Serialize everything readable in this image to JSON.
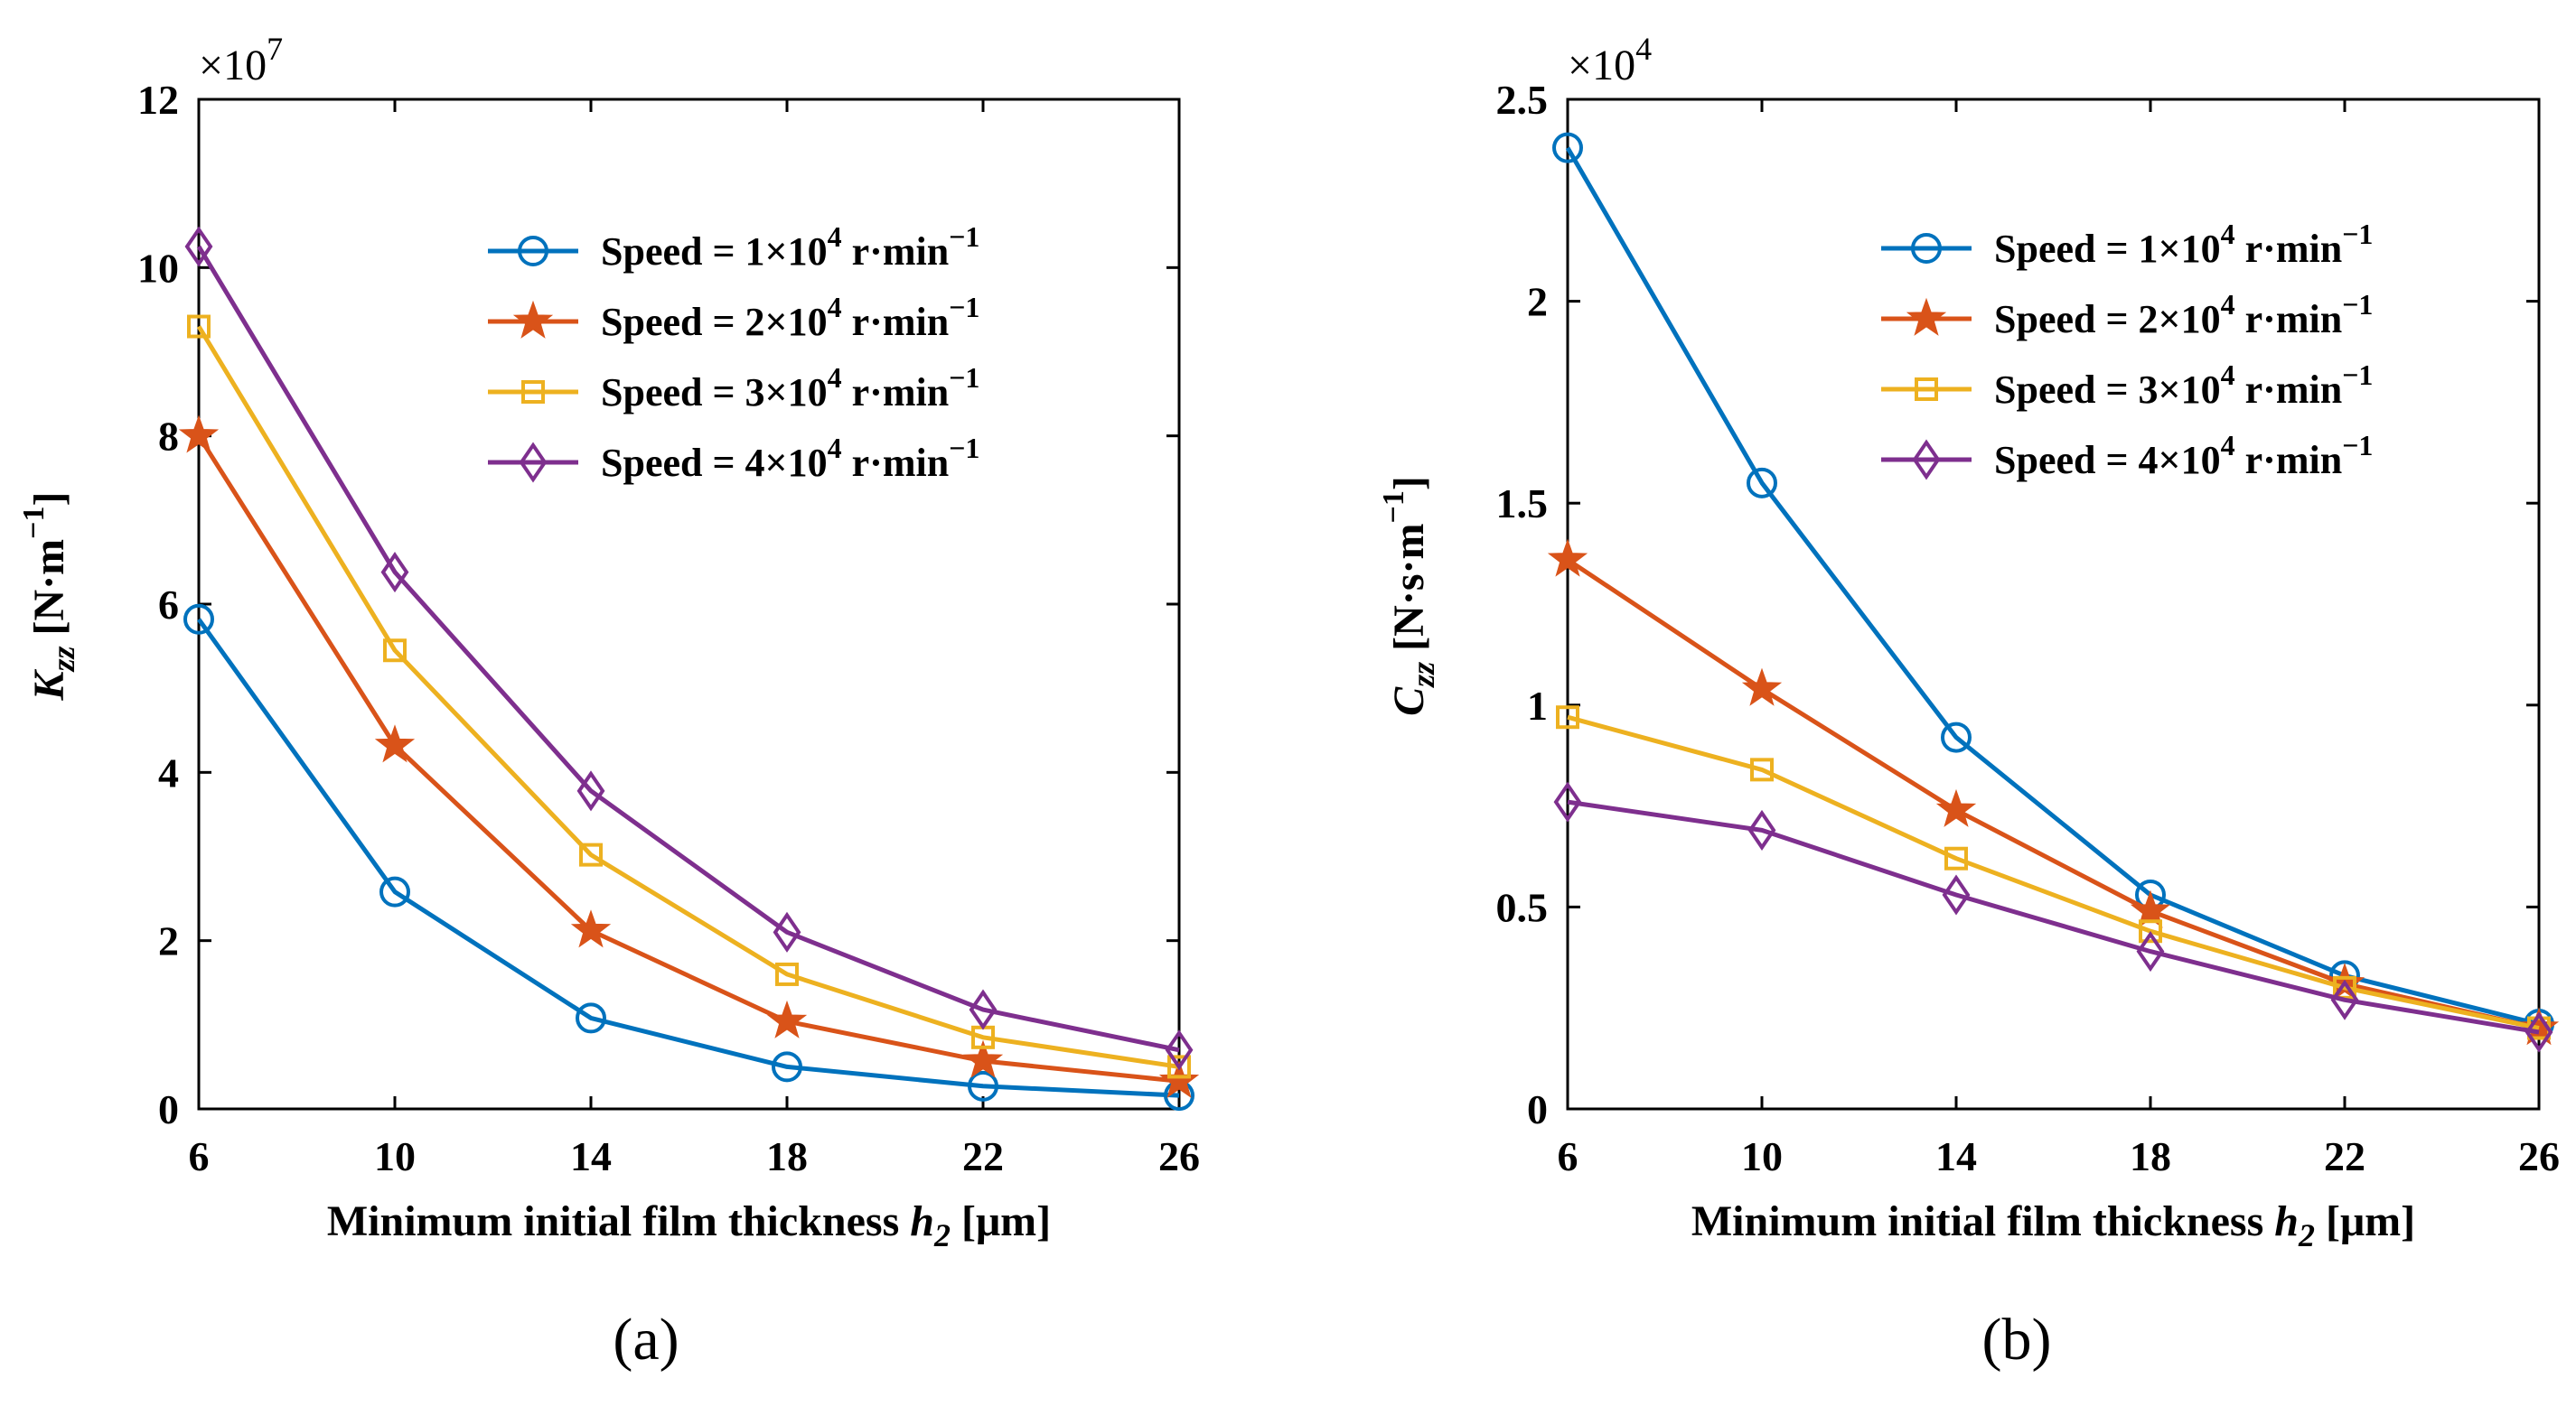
{
  "chart_data": [
    {
      "type": "line",
      "panel": "a",
      "caption": "(a)",
      "x": [
        6,
        10,
        14,
        18,
        22,
        26
      ],
      "xticks": [
        "6",
        "10",
        "14",
        "18",
        "22",
        "26"
      ],
      "xlim": [
        6,
        26
      ],
      "xlabel": "Minimum initial film thickness h2 [μm]",
      "xlabel_main": "Minimum initial film thickness ",
      "xlabel_var": "h",
      "xlabel_sub": "2",
      "xlabel_unit": " [μm]",
      "ylabel": "Kzz [N·m−1]",
      "ylabel_var": "K",
      "ylabel_sub": "zz",
      "ylabel_unit": " [N·m",
      "ylabel_sup": "−1",
      "ylabel_close": "]",
      "yunit_display": "",
      "ylim": [
        0,
        12
      ],
      "yticks": [
        0,
        2,
        4,
        6,
        8,
        10,
        12
      ],
      "ytick_labels": [
        "0",
        "2",
        "4",
        "6",
        "8",
        "10",
        "12"
      ],
      "y_multiplier": "×10",
      "y_multiplier_exp": "7",
      "legend_position": "top-right",
      "series": [
        {
          "name": "Speed = 1×10^4 r·min^-1",
          "label_pre": "Speed = 1×10",
          "label_exp": "4",
          "label_mid": " r·min",
          "label_exp2": "−1",
          "marker": "circle",
          "color": "#0072BD",
          "values": [
            5.82,
            2.58,
            1.08,
            0.5,
            0.27,
            0.16
          ]
        },
        {
          "name": "Speed = 2×10^4 r·min^-1",
          "label_pre": "Speed = 2×10",
          "label_exp": "4",
          "label_mid": " r·min",
          "label_exp2": "−1",
          "marker": "star",
          "color": "#D95319",
          "values": [
            8.0,
            4.32,
            2.12,
            1.04,
            0.57,
            0.33
          ]
        },
        {
          "name": "Speed = 3×10^4 r·min^-1",
          "label_pre": "Speed = 3×10",
          "label_exp": "4",
          "label_mid": " r·min",
          "label_exp2": "−1",
          "marker": "square",
          "color": "#EDB120",
          "values": [
            9.3,
            5.45,
            3.02,
            1.6,
            0.85,
            0.5
          ]
        },
        {
          "name": "Speed = 4×10^4 r·min^-1",
          "label_pre": "Speed = 4×10",
          "label_exp": "4",
          "label_mid": " r·min",
          "label_exp2": "−1",
          "marker": "diamond",
          "color": "#7E2F8E",
          "values": [
            10.25,
            6.38,
            3.78,
            2.1,
            1.18,
            0.7
          ]
        }
      ]
    },
    {
      "type": "line",
      "panel": "b",
      "caption": "(b)",
      "x": [
        6,
        10,
        14,
        18,
        22,
        26
      ],
      "xticks": [
        "6",
        "10",
        "14",
        "18",
        "22",
        "26"
      ],
      "xlim": [
        6,
        26
      ],
      "xlabel": "Minimum initial film thickness h2 [μm]",
      "xlabel_main": "Minimum initial film thickness ",
      "xlabel_var": "h",
      "xlabel_sub": "2",
      "xlabel_unit": " [μm]",
      "ylabel": "Czz [N·s·m−1]",
      "ylabel_var": "C",
      "ylabel_sub": "zz",
      "ylabel_unit": " [N·s·m",
      "ylabel_sup": "−1",
      "ylabel_close": "]",
      "ylim": [
        0,
        2.5
      ],
      "yticks": [
        0,
        0.5,
        1,
        1.5,
        2,
        2.5
      ],
      "ytick_labels": [
        "0",
        "0.5",
        "1",
        "1.5",
        "2",
        "2.5"
      ],
      "y_multiplier": "×10",
      "y_multiplier_exp": "4",
      "legend_position": "top-right",
      "series": [
        {
          "name": "Speed = 1×10^4 r·min^-1",
          "label_pre": "Speed = 1×10",
          "label_exp": "4",
          "label_mid": " r·min",
          "label_exp2": "−1",
          "marker": "circle",
          "color": "#0072BD",
          "values": [
            2.38,
            1.55,
            0.92,
            0.53,
            0.33,
            0.21
          ]
        },
        {
          "name": "Speed = 2×10^4 r·min^-1",
          "label_pre": "Speed = 2×10",
          "label_exp": "4",
          "label_mid": " r·min",
          "label_exp2": "−1",
          "marker": "star",
          "color": "#D95319",
          "values": [
            1.36,
            1.04,
            0.74,
            0.49,
            0.31,
            0.2
          ]
        },
        {
          "name": "Speed = 3×10^4 r·min^-1",
          "label_pre": "Speed = 3×10",
          "label_exp": "4",
          "label_mid": " r·min",
          "label_exp2": "−1",
          "marker": "square",
          "color": "#EDB120",
          "values": [
            0.97,
            0.84,
            0.62,
            0.44,
            0.3,
            0.2
          ]
        },
        {
          "name": "Speed = 4×10^4 r·min^-1",
          "label_pre": "Speed = 4×10",
          "label_exp": "4",
          "label_mid": " r·min",
          "label_exp2": "−1",
          "marker": "diamond",
          "color": "#7E2F8E",
          "values": [
            0.76,
            0.69,
            0.53,
            0.39,
            0.27,
            0.19
          ]
        }
      ]
    }
  ]
}
